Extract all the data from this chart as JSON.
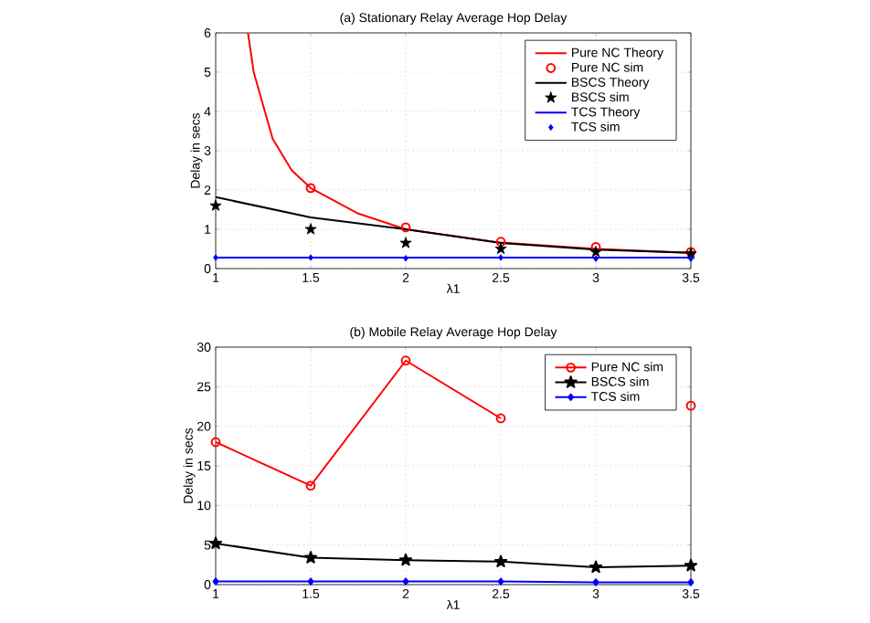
{
  "chart_data": [
    {
      "type": "line",
      "title": "(a) Stationary Relay Average Hop Delay",
      "xlabel": "λ1",
      "ylabel": "Delay in secs",
      "xlim": [
        1,
        3.5
      ],
      "xticks": [
        1,
        1.5,
        2,
        2.5,
        3,
        3.5
      ],
      "ylim": [
        0,
        6
      ],
      "yticks": [
        0,
        1,
        2,
        3,
        4,
        5,
        6
      ],
      "grid": true,
      "legend": "top right",
      "series": [
        {
          "name": "Pure NC Theory",
          "color": "#ff0000",
          "marker": "none",
          "line_style": "solid",
          "x": [
            1.17,
            1.2,
            1.3,
            1.4,
            1.5,
            1.75,
            2,
            2.5,
            3,
            3.5
          ],
          "values": [
            6,
            5.0,
            3.3,
            2.5,
            2.05,
            1.4,
            1.0,
            0.66,
            0.5,
            0.4
          ]
        },
        {
          "name": "Pure NC sim",
          "type": "scatter",
          "color": "#ff0000",
          "marker": "circle",
          "x": [
            1.5,
            2,
            2.5,
            3,
            3.5
          ],
          "values": [
            2.05,
            1.05,
            0.68,
            0.55,
            0.42
          ]
        },
        {
          "name": "BSCS Theory",
          "color": "#000000",
          "marker": "none",
          "line_style": "solid",
          "x": [
            1,
            1.5,
            2,
            2.5,
            3,
            3.5
          ],
          "values": [
            1.82,
            1.3,
            1.0,
            0.65,
            0.48,
            0.4
          ]
        },
        {
          "name": "BSCS sim",
          "type": "scatter",
          "color": "#000000",
          "marker": "star",
          "x": [
            1,
            1.5,
            2,
            2.5,
            3,
            3.5
          ],
          "values": [
            1.6,
            1.0,
            0.65,
            0.5,
            0.42,
            0.38
          ]
        },
        {
          "name": "TCS Theory",
          "color": "#0000ff",
          "marker": "none",
          "line_style": "solid",
          "x": [
            1,
            3.5
          ],
          "values": [
            0.28,
            0.28
          ]
        },
        {
          "name": "TCS sim",
          "type": "scatter",
          "color": "#0000ff",
          "marker": "diamond",
          "x": [
            1,
            1.5,
            2,
            2.5,
            3,
            3.5
          ],
          "values": [
            0.28,
            0.28,
            0.26,
            0.28,
            0.25,
            0.25
          ]
        }
      ]
    },
    {
      "type": "line",
      "title": "(b) Mobile Relay Average Hop Delay",
      "xlabel": "λ1",
      "ylabel": "Delay in secs",
      "xlim": [
        1,
        3.5
      ],
      "xticks": [
        1,
        1.5,
        2,
        2.5,
        3,
        3.5
      ],
      "ylim": [
        0,
        30
      ],
      "yticks": [
        0,
        5,
        10,
        15,
        20,
        25,
        30
      ],
      "grid": true,
      "legend": "top right",
      "series": [
        {
          "name": "Pure NC sim",
          "color": "#ff0000",
          "marker": "circle",
          "line_style": "solid",
          "x": [
            1,
            1.5,
            2,
            2.5,
            3,
            3.5
          ],
          "values": [
            18,
            12.5,
            28.3,
            21,
            null,
            22.6
          ]
        },
        {
          "name": "BSCS sim",
          "color": "#000000",
          "marker": "star",
          "line_style": "solid",
          "x": [
            1,
            1.5,
            2,
            2.5,
            3,
            3.5
          ],
          "values": [
            5.2,
            3.4,
            3.1,
            2.9,
            2.2,
            2.4
          ]
        },
        {
          "name": "TCS sim",
          "color": "#0000ff",
          "marker": "diamond",
          "line_style": "solid",
          "x": [
            1,
            1.5,
            2,
            2.5,
            3,
            3.5
          ],
          "values": [
            0.4,
            0.4,
            0.4,
            0.4,
            0.3,
            0.3
          ]
        }
      ]
    }
  ]
}
